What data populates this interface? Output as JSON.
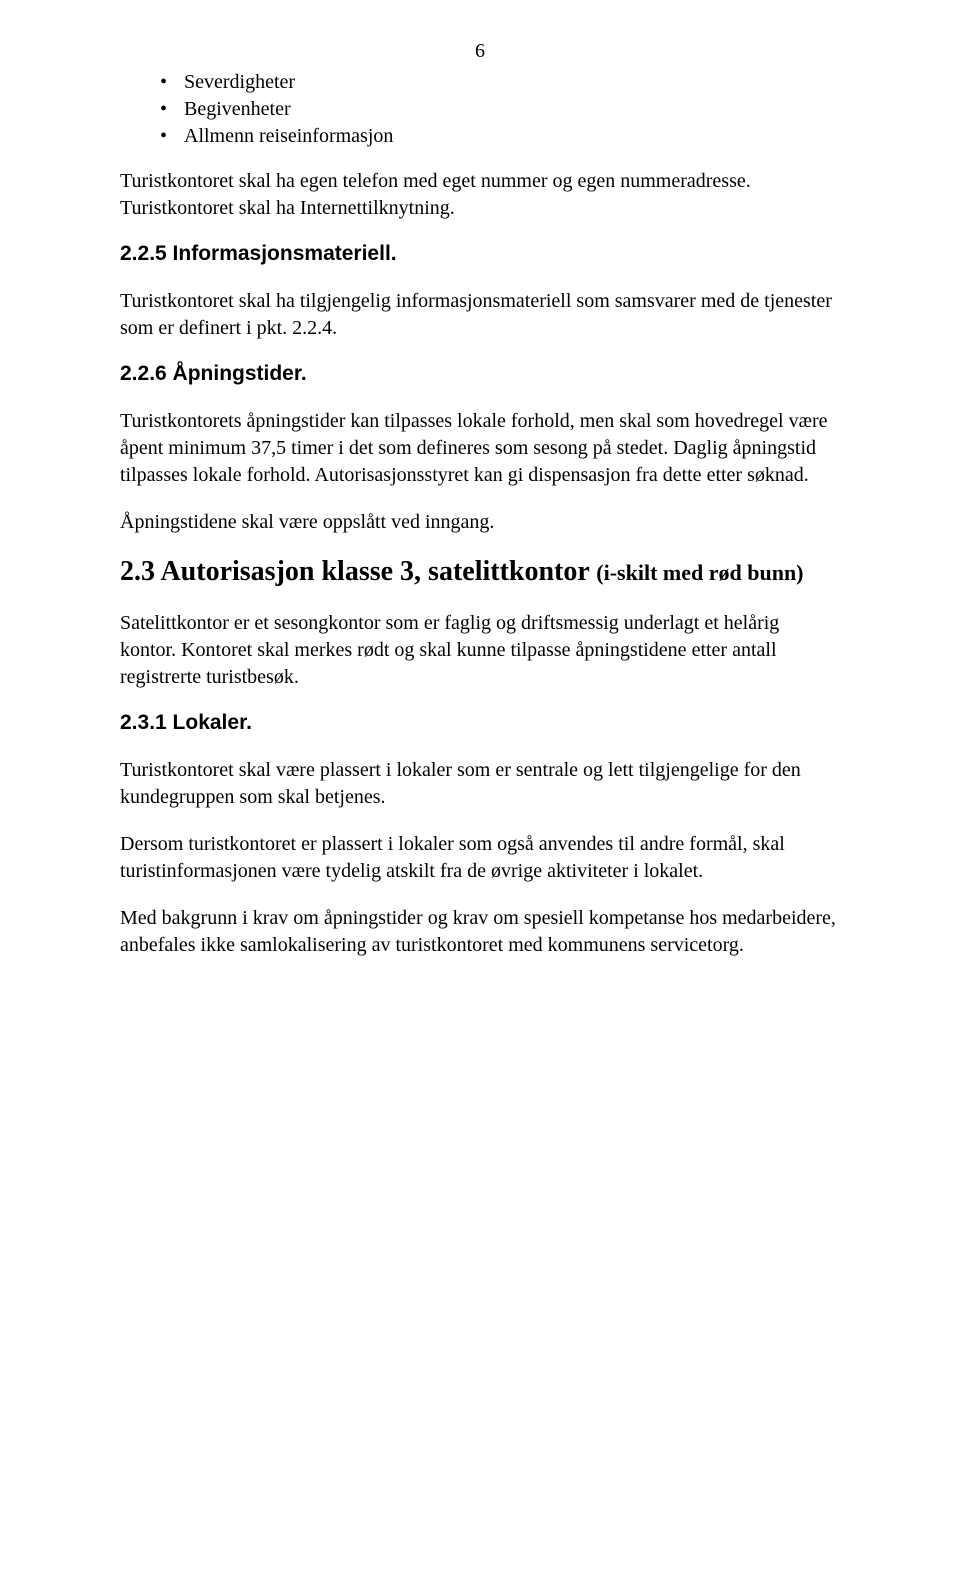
{
  "page_number": "6",
  "bullets": {
    "items": [
      "Severdigheter",
      "Begivenheter",
      "Allmenn reiseinformasjon"
    ]
  },
  "paragraphs": {
    "p1": "Turistkontoret skal ha egen telefon med eget nummer og egen nummeradresse. Turistkontoret skal ha Internettilknytning.",
    "p2": "Turistkontoret skal ha tilgjengelig informasjonsmateriell som samsvarer med de tjenester som er definert i pkt. 2.2.4.",
    "p3": "Turistkontorets åpningstider kan tilpasses lokale forhold, men skal som hovedregel være åpent minimum 37,5 timer i det som defineres som sesong på stedet. Daglig åpningstid tilpasses lokale forhold. Autorisasjonsstyret kan gi dispensasjon fra dette etter søknad.",
    "p4": "Åpningstidene skal være oppslått ved inngang.",
    "p5": "Satelittkontor er et sesongkontor som er faglig og driftsmessig underlagt et helårig kontor. Kontoret skal merkes rødt og skal kunne tilpasse åpningstidene etter antall registrerte turistbesøk.",
    "p6": "Turistkontoret skal være plassert i lokaler som er sentrale og lett tilgjengelige for den kundegruppen som skal betjenes.",
    "p7": "Dersom turistkontoret er plassert i lokaler som også anvendes til andre formål, skal turistinformasjonen være tydelig atskilt fra de øvrige aktiviteter i lokalet.",
    "p8": "Med bakgrunn i krav om åpningstider og krav om spesiell kompetanse hos medarbeidere, anbefales ikke samlokalisering av turistkontoret med kommunens servicetorg."
  },
  "headings": {
    "h225": "2.2.5 Informasjonsmateriell.",
    "h226": "2.2.6 Åpningstider.",
    "h23_main": "2.3 Autorisasjon klasse 3, satelittkontor ",
    "h23_sub": "(i-skilt med rød bunn)",
    "h231": "2.3.1 Lokaler."
  },
  "colors": {
    "text": "#000000",
    "background": "#ffffff"
  },
  "typography": {
    "body_font": "Times New Roman",
    "heading_font": "Arial",
    "body_size_pt": 15,
    "heading_small_size_pt": 15,
    "heading_big_size_pt": 21
  }
}
